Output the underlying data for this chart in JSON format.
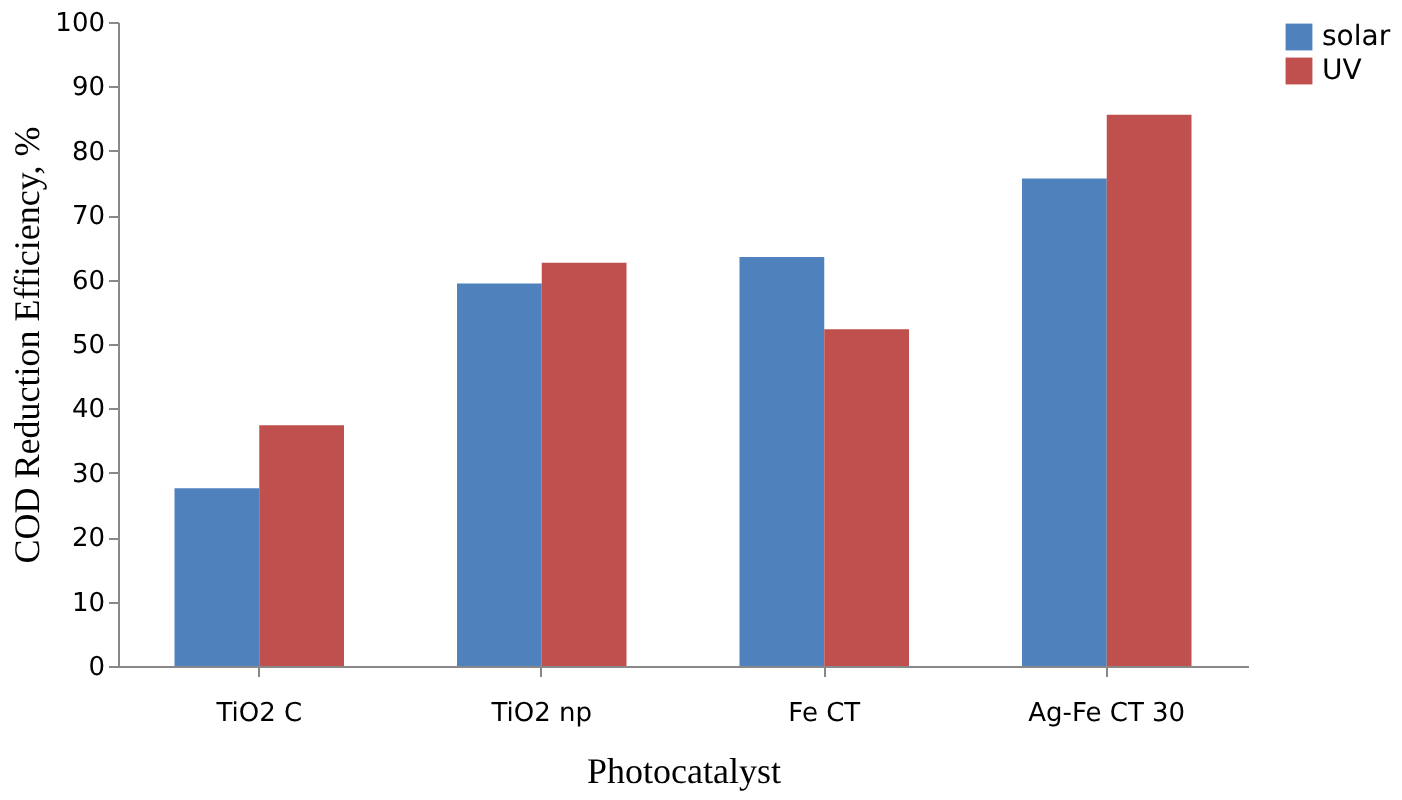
{
  "chart_data": {
    "type": "bar",
    "xlabel": "Photocatalyst",
    "ylabel": "COD Reduction Efficiency, %",
    "categories": [
      "TiO2 C",
      "TiO2 np",
      "Fe CT",
      "Ag-Fe CT 30"
    ],
    "series": [
      {
        "name": "solar",
        "color": "#4f81bd",
        "values": [
          27.6,
          59.4,
          63.5,
          75.7
        ]
      },
      {
        "name": "UV",
        "color": "#c0504d",
        "values": [
          37.4,
          62.6,
          52.3,
          85.6
        ]
      }
    ],
    "ylim": [
      0,
      100
    ],
    "yticks": [
      0,
      10,
      20,
      30,
      40,
      50,
      60,
      70,
      80,
      90,
      100
    ],
    "grid": false,
    "legend": "right"
  }
}
